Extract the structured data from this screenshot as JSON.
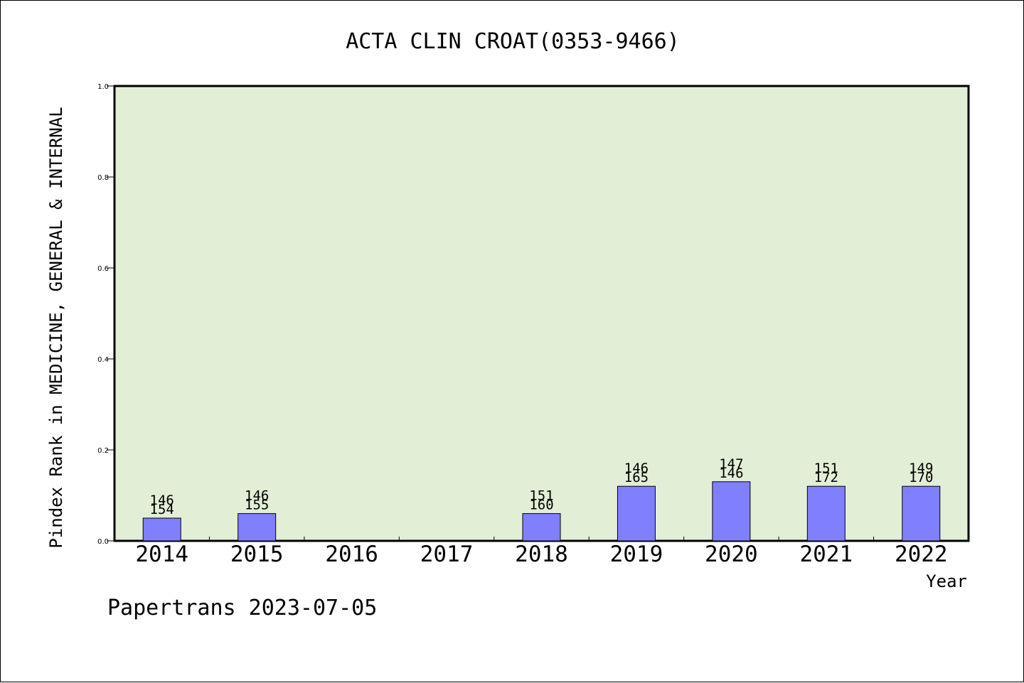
{
  "chart_data": {
    "type": "bar",
    "title": "ACTA CLIN CROAT(0353-9466)",
    "xlabel": "Year",
    "ylabel": "Pindex Rank in MEDICINE, GENERAL & INTERNAL",
    "categories": [
      "2014",
      "2015",
      "2016",
      "2017",
      "2018",
      "2019",
      "2020",
      "2021",
      "2022"
    ],
    "values": [
      0.05,
      0.06,
      null,
      null,
      0.06,
      0.12,
      0.13,
      0.12,
      0.12
    ],
    "label_top": [
      "146",
      "146",
      "",
      "",
      "151",
      "146",
      "147",
      "151",
      "149"
    ],
    "label_bottom": [
      "154",
      "155",
      "",
      "",
      "160",
      "165",
      "146",
      "172",
      "170"
    ],
    "ylim": [
      0,
      1.0
    ],
    "yticks": [
      0.0,
      0.2,
      0.4,
      0.6,
      0.8,
      1.0
    ],
    "ytick_labels": [
      "0.0",
      "0.2",
      "0.4",
      "0.6",
      "0.8",
      "1.0"
    ],
    "grid": false,
    "colors": {
      "plot_bg": "#e2efd6",
      "bar": "#8080ff",
      "axis": "#000000"
    }
  },
  "footer": {
    "credit": "Papertrans 2023-07-05"
  }
}
